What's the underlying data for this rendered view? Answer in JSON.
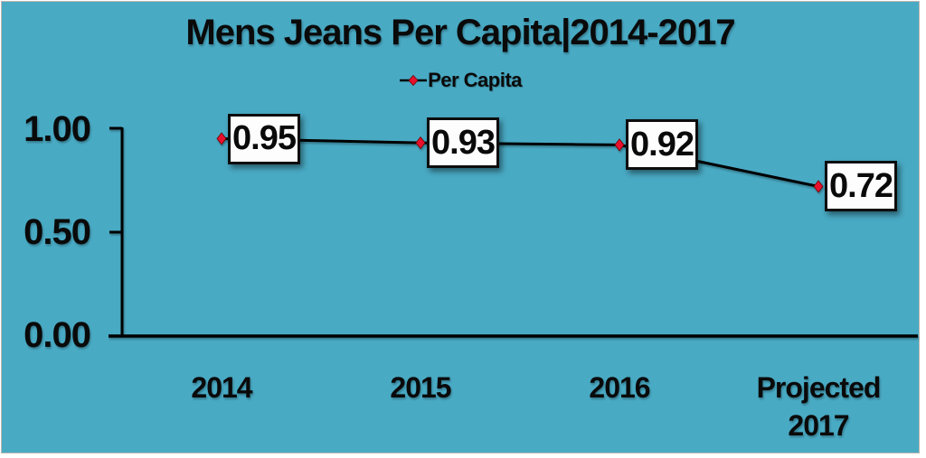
{
  "chart_data": {
    "type": "line",
    "title": "Mens Jeans Per Capita|2014-2017",
    "legend": {
      "label": "Per Capita",
      "position": "top-center",
      "marker": "red-diamond-on-line"
    },
    "categories": [
      "2014",
      "2015",
      "2016",
      "Projected 2017"
    ],
    "series": [
      {
        "name": "Per Capita",
        "values": [
          0.95,
          0.93,
          0.92,
          0.72
        ]
      }
    ],
    "data_labels": [
      "0.95",
      "0.93",
      "0.92",
      "0.72"
    ],
    "y_ticks": [
      "1.00",
      "0.50",
      "0.00"
    ],
    "ylim": [
      0,
      1
    ],
    "grid": false,
    "colors": {
      "background": "#49aac4",
      "line": "#000000",
      "marker": "#e8112d",
      "label_box_bg": "#fdfdfd",
      "label_box_border": "#0d0d0d",
      "text": "#0a0a0a"
    }
  }
}
